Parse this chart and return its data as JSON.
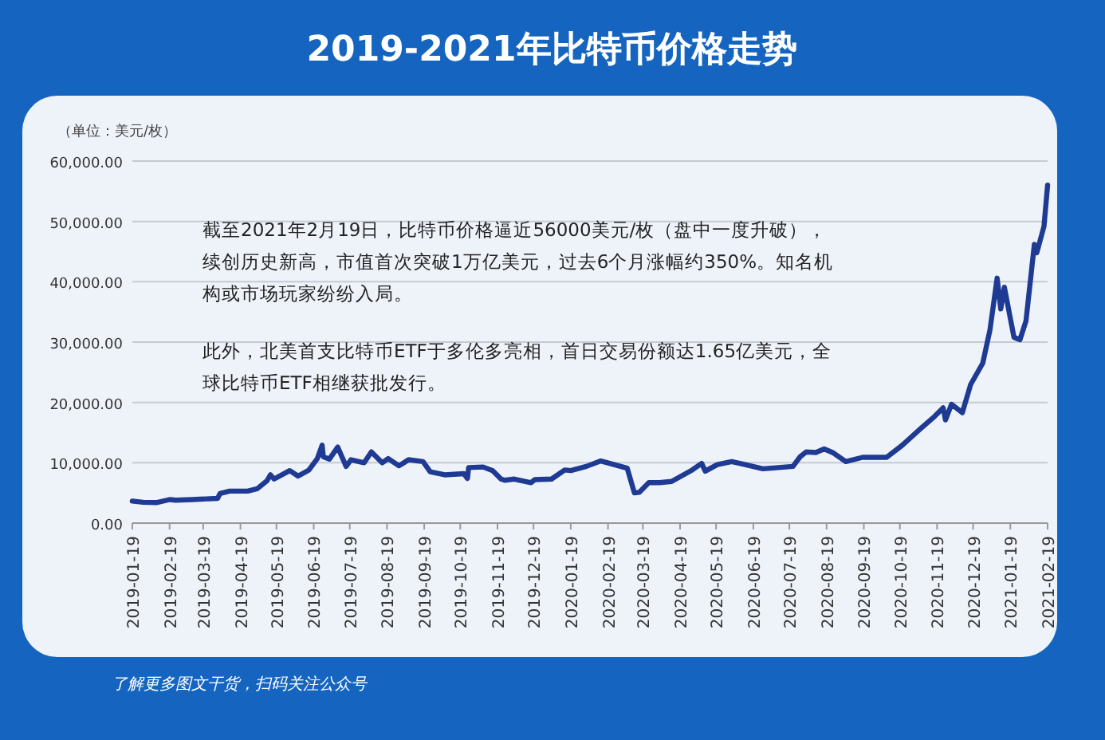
{
  "chart_data": {
    "type": "line",
    "title": "2019-2021年比特币价格走势",
    "ylabel": "（单位：美元/枚）",
    "xlim": [
      "2019-01-19",
      "2021-02-19"
    ],
    "xticks": [
      "2019-01-19",
      "2019-02-19",
      "2019-03-19",
      "2019-04-19",
      "2019-05-19",
      "2019-06-19",
      "2019-07-19",
      "2019-08-19",
      "2019-09-19",
      "2019-10-19",
      "2019-11-19",
      "2019-12-19",
      "2020-01-19",
      "2020-02-19",
      "2020-03-19",
      "2020-04-19",
      "2020-05-19",
      "2020-06-19",
      "2020-07-19",
      "2020-08-19",
      "2020-09-19",
      "2020-10-19",
      "2020-11-19",
      "2020-12-19",
      "2021-01-19",
      "2021-02-19"
    ],
    "ylim": [
      0,
      60000
    ],
    "yticks": [
      {
        "value": 0,
        "label": "0.00"
      },
      {
        "value": 10000,
        "label": "10,000.00"
      },
      {
        "value": 20000,
        "label": "20,000.00"
      },
      {
        "value": 30000,
        "label": "30,000.00"
      },
      {
        "value": 40000,
        "label": "40,000.00"
      },
      {
        "value": 50000,
        "label": "50,000.00"
      },
      {
        "value": 60000,
        "label": "60,000.00"
      }
    ],
    "grid": "y",
    "marker": "none",
    "line_style": "solid",
    "x": [
      "2019-01-19",
      "2019-01-28",
      "2019-02-08",
      "2019-02-19",
      "2019-02-24",
      "2019-03-10",
      "2019-03-31",
      "2019-04-02",
      "2019-04-10",
      "2019-04-25",
      "2019-05-03",
      "2019-05-11",
      "2019-05-14",
      "2019-05-17",
      "2019-05-30",
      "2019-06-06",
      "2019-06-15",
      "2019-06-22",
      "2019-06-26",
      "2019-06-27",
      "2019-07-02",
      "2019-07-09",
      "2019-07-16",
      "2019-07-20",
      "2019-07-31",
      "2019-08-06",
      "2019-08-15",
      "2019-08-20",
      "2019-08-29",
      "2019-09-06",
      "2019-09-18",
      "2019-09-24",
      "2019-10-06",
      "2019-10-22",
      "2019-10-25",
      "2019-10-26",
      "2019-11-07",
      "2019-11-15",
      "2019-11-22",
      "2019-11-25",
      "2019-12-03",
      "2019-12-17",
      "2019-12-20",
      "2020-01-03",
      "2020-01-14",
      "2020-01-19",
      "2020-02-01",
      "2020-02-13",
      "2020-02-24",
      "2020-03-06",
      "2020-03-12",
      "2020-03-16",
      "2020-03-24",
      "2020-04-02",
      "2020-04-12",
      "2020-04-29",
      "2020-05-07",
      "2020-05-10",
      "2020-05-20",
      "2020-06-01",
      "2020-06-10",
      "2020-06-27",
      "2020-07-10",
      "2020-07-22",
      "2020-07-28",
      "2020-08-02",
      "2020-08-10",
      "2020-08-17",
      "2020-08-24",
      "2020-09-04",
      "2020-09-18",
      "2020-10-08",
      "2020-10-21",
      "2020-11-05",
      "2020-11-17",
      "2020-11-24",
      "2020-11-26",
      "2020-12-01",
      "2020-12-10",
      "2020-12-17",
      "2020-12-27",
      "2021-01-02",
      "2021-01-08",
      "2021-01-11",
      "2021-01-14",
      "2021-01-22",
      "2021-01-27",
      "2021-02-01",
      "2021-02-08",
      "2021-02-10",
      "2021-02-16",
      "2021-02-19"
    ],
    "series": [
      {
        "color": "#1f3a93",
        "values": [
          3650,
          3450,
          3400,
          3900,
          3800,
          3900,
          4100,
          4900,
          5300,
          5300,
          5700,
          7000,
          8000,
          7300,
          8700,
          7800,
          8800,
          10700,
          12900,
          11000,
          10600,
          12600,
          9400,
          10500,
          10000,
          11800,
          10000,
          10700,
          9500,
          10500,
          10200,
          8500,
          8000,
          8200,
          7400,
          9200,
          9300,
          8700,
          7300,
          7100,
          7300,
          6700,
          7200,
          7300,
          8800,
          8700,
          9400,
          10300,
          9700,
          9100,
          5000,
          5100,
          6700,
          6700,
          6900,
          8800,
          9900,
          8600,
          9700,
          10200,
          9800,
          9000,
          9200,
          9400,
          11000,
          11800,
          11700,
          12300,
          11700,
          10200,
          10900,
          10900,
          12900,
          15600,
          17700,
          19100,
          17100,
          19700,
          18300,
          23000,
          26500,
          32000,
          40600,
          35500,
          39100,
          30800,
          30400,
          33500,
          46200,
          44800,
          49200,
          56000
        ]
      }
    ],
    "annotations": [
      "截至2021年2月19日，比特币价格逼近56000美元/枚（盘中一度升破），续创历史新高，市值首次突破1万亿美元，过去6个月涨幅约350%。知名机构或市场玩家纷纷入局。",
      "此外，北美首支比特币ETF于多伦多亮相，首日交易份额达1.65亿美元，全球比特币ETF相继获批发行。",
      "了解更多图文干货，扫码关注公众号"
    ]
  }
}
